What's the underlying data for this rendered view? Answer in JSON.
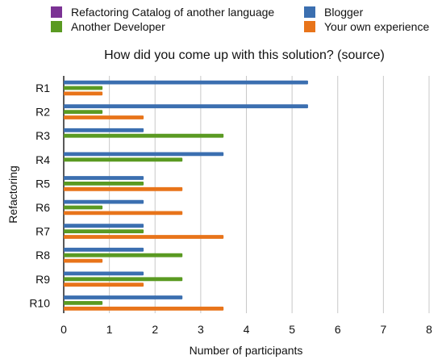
{
  "chart_data": {
    "type": "bar",
    "orientation": "horizontal",
    "title": "How did you come up with this solution? (source)",
    "xlabel": "Number of participants",
    "ylabel": "Refactoring",
    "categories": [
      "R1",
      "R2",
      "R3",
      "R4",
      "R5",
      "R6",
      "R7",
      "R8",
      "R9",
      "R10"
    ],
    "xlim": [
      0,
      8
    ],
    "xticks": [
      "0",
      "1",
      "2",
      "3",
      "4",
      "5",
      "6",
      "7",
      "8"
    ],
    "grid": "vertical lines",
    "legend_position": "top",
    "series": [
      {
        "name": "Refactoring Catalog of another language",
        "color": "#7b3294",
        "values": [
          0,
          0,
          0,
          0,
          0,
          0,
          0,
          0,
          0,
          0
        ]
      },
      {
        "name": "Blogger",
        "color": "#3b6fb0",
        "values": [
          5.35,
          5.35,
          1.75,
          3.5,
          1.75,
          1.75,
          1.75,
          1.75,
          1.75,
          2.6
        ]
      },
      {
        "name": "Another Developer",
        "color": "#5a9a22",
        "values": [
          0.85,
          0.85,
          3.5,
          2.6,
          1.75,
          0.85,
          1.75,
          2.6,
          2.6,
          0.85
        ]
      },
      {
        "name": "Your own experience",
        "color": "#e8741a",
        "values": [
          0.85,
          1.75,
          0,
          0,
          2.6,
          2.6,
          3.5,
          0.85,
          1.75,
          3.5
        ]
      }
    ]
  }
}
